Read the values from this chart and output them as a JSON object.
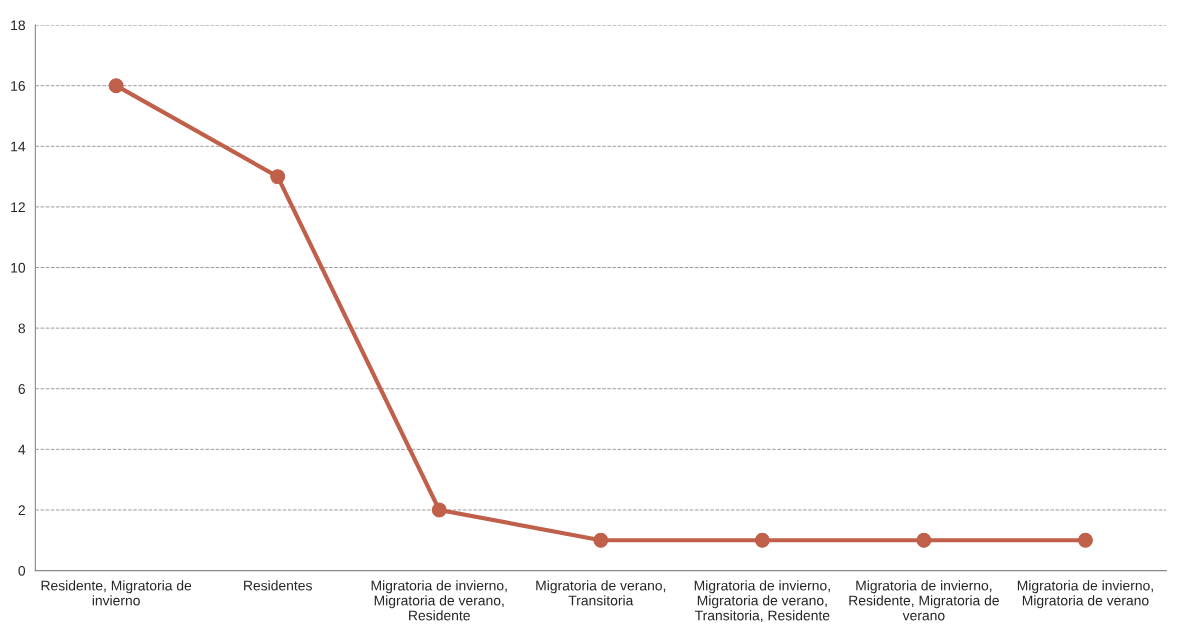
{
  "chart_data": {
    "type": "line",
    "categories": [
      "Residente, Migratoria de\ninvierno",
      "Residentes",
      "Migratoria de invierno,\nMigratoria de verano,\nResidente",
      "Migratoria de verano,\nTransitoria",
      "Migratoria de invierno,\nMigratoria de verano,\nTransitoria, Residente",
      "Migratoria de invierno,\nResidente, Migratoria de\nverano",
      "Migratoria de invierno,\nMigratoria de verano"
    ],
    "series": [
      {
        "color": "#c0604a",
        "values": [
          16,
          13,
          2,
          1,
          1,
          1,
          1
        ]
      }
    ],
    "ylim": [
      0,
      18
    ],
    "yticks": [
      0,
      2,
      4,
      6,
      8,
      10,
      12,
      14,
      16,
      18
    ],
    "grid": "y",
    "marker": "circle",
    "line_style": "solid",
    "legend": false
  }
}
